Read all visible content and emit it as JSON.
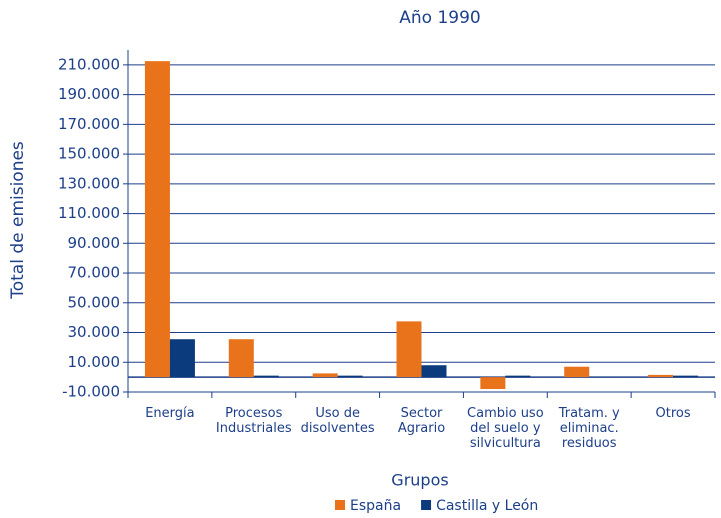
{
  "chart_data": {
    "type": "bar",
    "title": "Año 1990",
    "x_label": "Grupos",
    "y_label": "Total de emisiones",
    "categories": [
      [
        "Energía"
      ],
      [
        "Procesos",
        "Industriales"
      ],
      [
        "Uso de",
        "disolventes"
      ],
      [
        "Sector",
        "Agrario"
      ],
      [
        "Cambio uso",
        "del suelo y",
        "silvicultura"
      ],
      [
        "Tratam. y",
        "eliminac.",
        "residuos"
      ],
      [
        "Otros"
      ]
    ],
    "series": [
      {
        "name": "España",
        "color": "#e8731a",
        "values": [
          212500,
          25500,
          2500,
          37500,
          -8000,
          7000,
          1500
        ]
      },
      {
        "name": "Castilla y León",
        "color": "#0b3b7c",
        "values": [
          25500,
          1000,
          1000,
          8000,
          1000,
          300,
          1000
        ]
      }
    ],
    "ylim": [
      -10000,
      220000
    ],
    "yticks": [
      {
        "value": -10000,
        "label": "-10.000"
      },
      {
        "value": 10000,
        "label": "10.000"
      },
      {
        "value": 30000,
        "label": "30.000"
      },
      {
        "value": 50000,
        "label": "50.000"
      },
      {
        "value": 70000,
        "label": "70.000"
      },
      {
        "value": 90000,
        "label": "90.000"
      },
      {
        "value": 110000,
        "label": "110.000"
      },
      {
        "value": 130000,
        "label": "130.000"
      },
      {
        "value": 150000,
        "label": "150.000"
      },
      {
        "value": 170000,
        "label": "170.000"
      },
      {
        "value": 190000,
        "label": "190.000"
      },
      {
        "value": 210000,
        "label": "210.000"
      }
    ],
    "grid": true,
    "legend": "bottom"
  }
}
